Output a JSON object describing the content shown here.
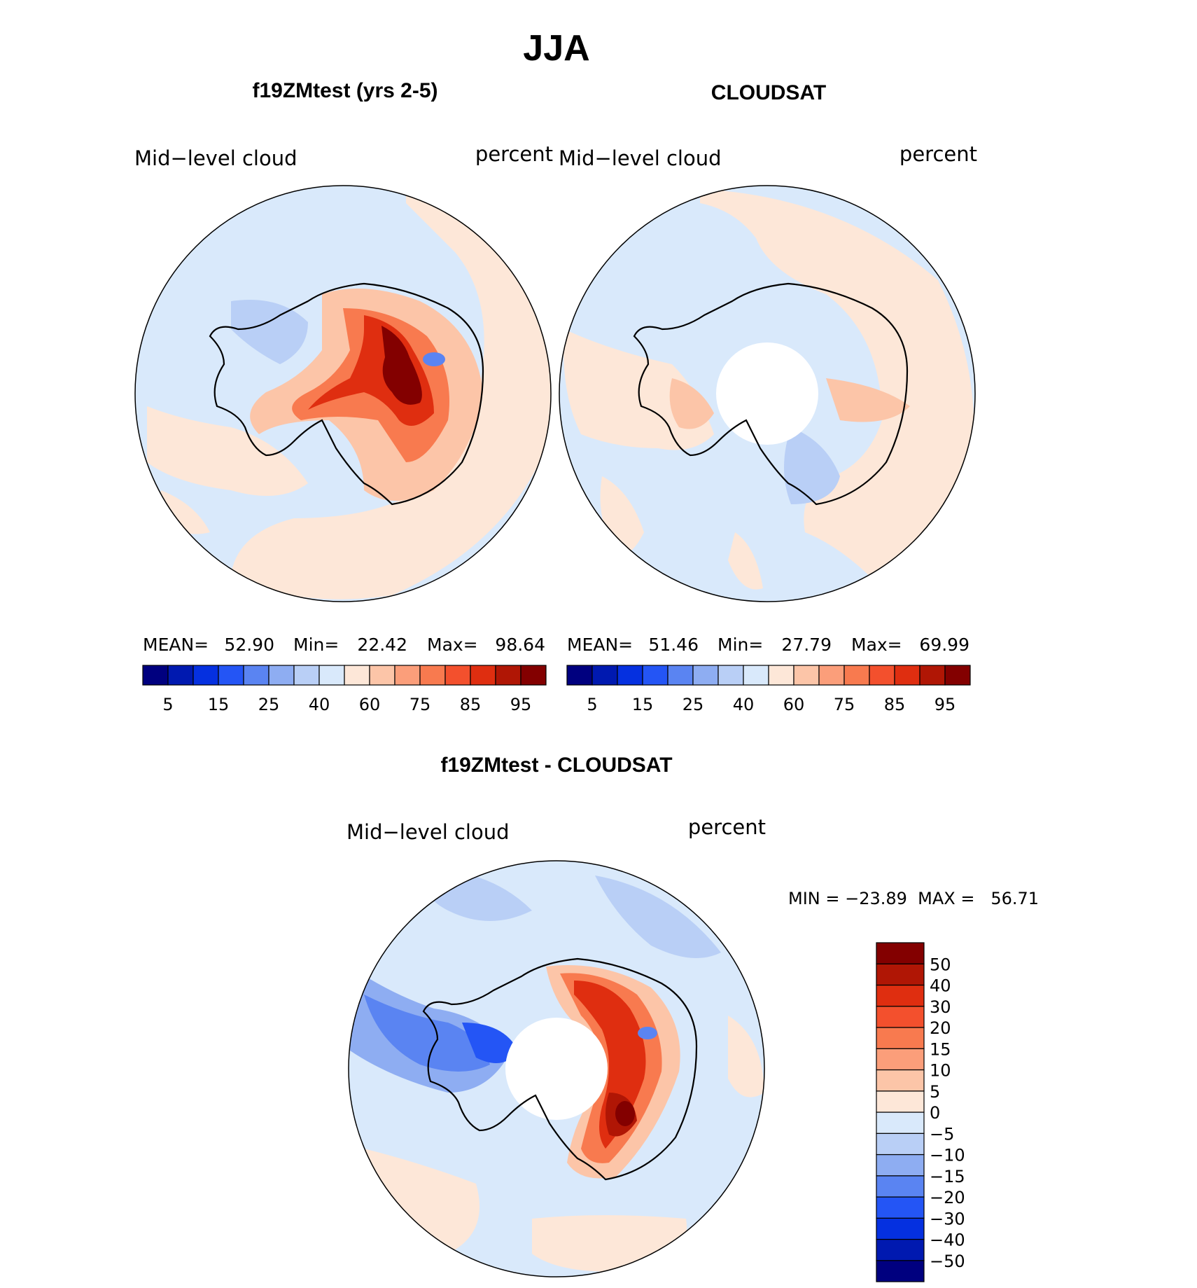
{
  "figure": {
    "title": "JJA"
  },
  "panels": [
    {
      "heading": "f19ZMtest (yrs 2-5)",
      "left_label": "Mid−level cloud",
      "right_label": "percent",
      "stats": {
        "mean_label": "MEAN=",
        "mean": "52.90",
        "min_label": "Min=",
        "min": "22.42",
        "max_label": "Max=",
        "max": "98.64"
      }
    },
    {
      "heading": "CLOUDSAT",
      "left_label": "Mid−level cloud",
      "right_label": "percent",
      "stats": {
        "mean_label": "MEAN=",
        "mean": "51.46",
        "min_label": "Min=",
        "min": "27.79",
        "max_label": "Max=",
        "max": "69.99"
      }
    },
    {
      "heading": "f19ZMtest - CLOUDSAT",
      "left_label": "Mid−level cloud",
      "right_label": "percent",
      "minmax_text": "MIN = −23.89  MAX =   56.71"
    }
  ],
  "colorbars": {
    "abs": {
      "colors": [
        "#00007f",
        "#0019b0",
        "#0530e0",
        "#2455f5",
        "#5a84f2",
        "#8eadf2",
        "#b9cff6",
        "#d9e9fb",
        "#fde7d8",
        "#fcc5a8",
        "#fb9e7a",
        "#f87a4f",
        "#f3502d",
        "#df2e10",
        "#b01605",
        "#830000"
      ],
      "tick_labels": [
        "5",
        "15",
        "25",
        "40",
        "60",
        "75",
        "85",
        "95"
      ]
    },
    "diff": {
      "colors": [
        "#00007f",
        "#0019b0",
        "#0530e0",
        "#2455f5",
        "#5a84f2",
        "#8eadf2",
        "#b9cff6",
        "#d9e9fb",
        "#fde7d8",
        "#fcc5a8",
        "#fb9e7a",
        "#f87a4f",
        "#f3502d",
        "#df2e10",
        "#b01605",
        "#830000"
      ],
      "tick_labels": [
        "−50",
        "−40",
        "−30",
        "−20",
        "−15",
        "−10",
        "−5",
        "0",
        "5",
        "10",
        "15",
        "20",
        "30",
        "40",
        "50"
      ]
    }
  }
}
